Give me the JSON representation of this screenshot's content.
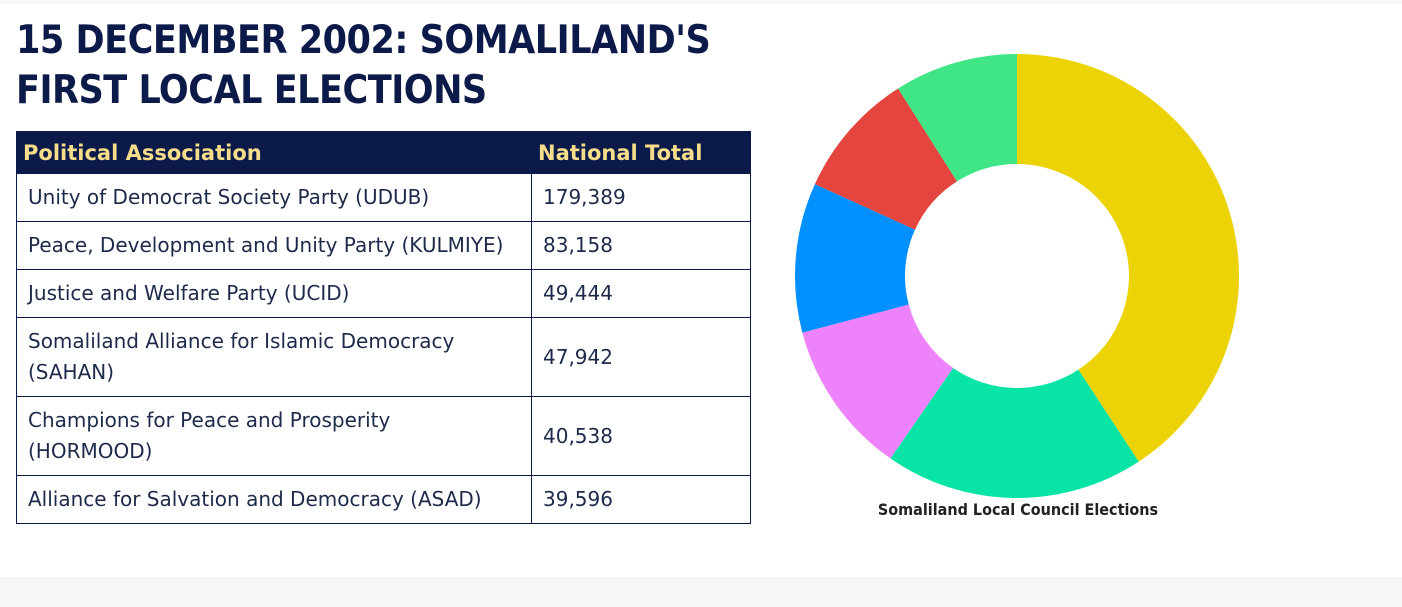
{
  "page": {
    "title": "15 DECEMBER 2002: SOMALILAND'S FIRST LOCAL ELECTIONS"
  },
  "table": {
    "headers": [
      "Political Association",
      "National Total"
    ],
    "rows": [
      {
        "name": "Unity of Democrat Society Party (UDUB)",
        "total": "179,389"
      },
      {
        "name": "Peace, Development and Unity Party (KULMIYE)",
        "total": "83,158"
      },
      {
        "name": "Justice and Welfare Party (UCID)",
        "total": "49,444"
      },
      {
        "name": "Somaliland Alliance for Islamic Democracy (SAHAN)",
        "total": "47,942"
      },
      {
        "name": "Champions for Peace and Prosperity (HORMOOD)",
        "total": "40,538"
      },
      {
        "name": "Alliance for Salvation and Democracy (ASAD)",
        "total": "39,596"
      }
    ]
  },
  "chart_data": {
    "type": "pie",
    "title": "Somaliland Local Council Elections",
    "categories": [
      "UDUB",
      "KULMIYE",
      "UCID",
      "SAHAN",
      "HORMOOD",
      "ASAD"
    ],
    "values": [
      179389,
      83158,
      49444,
      47942,
      40538,
      39596
    ],
    "colors": [
      "#ebd305",
      "#08e4a6",
      "#ee82fa",
      "#0090ff",
      "#e5453f",
      "#40e685"
    ],
    "donut": true,
    "legend": "none"
  }
}
